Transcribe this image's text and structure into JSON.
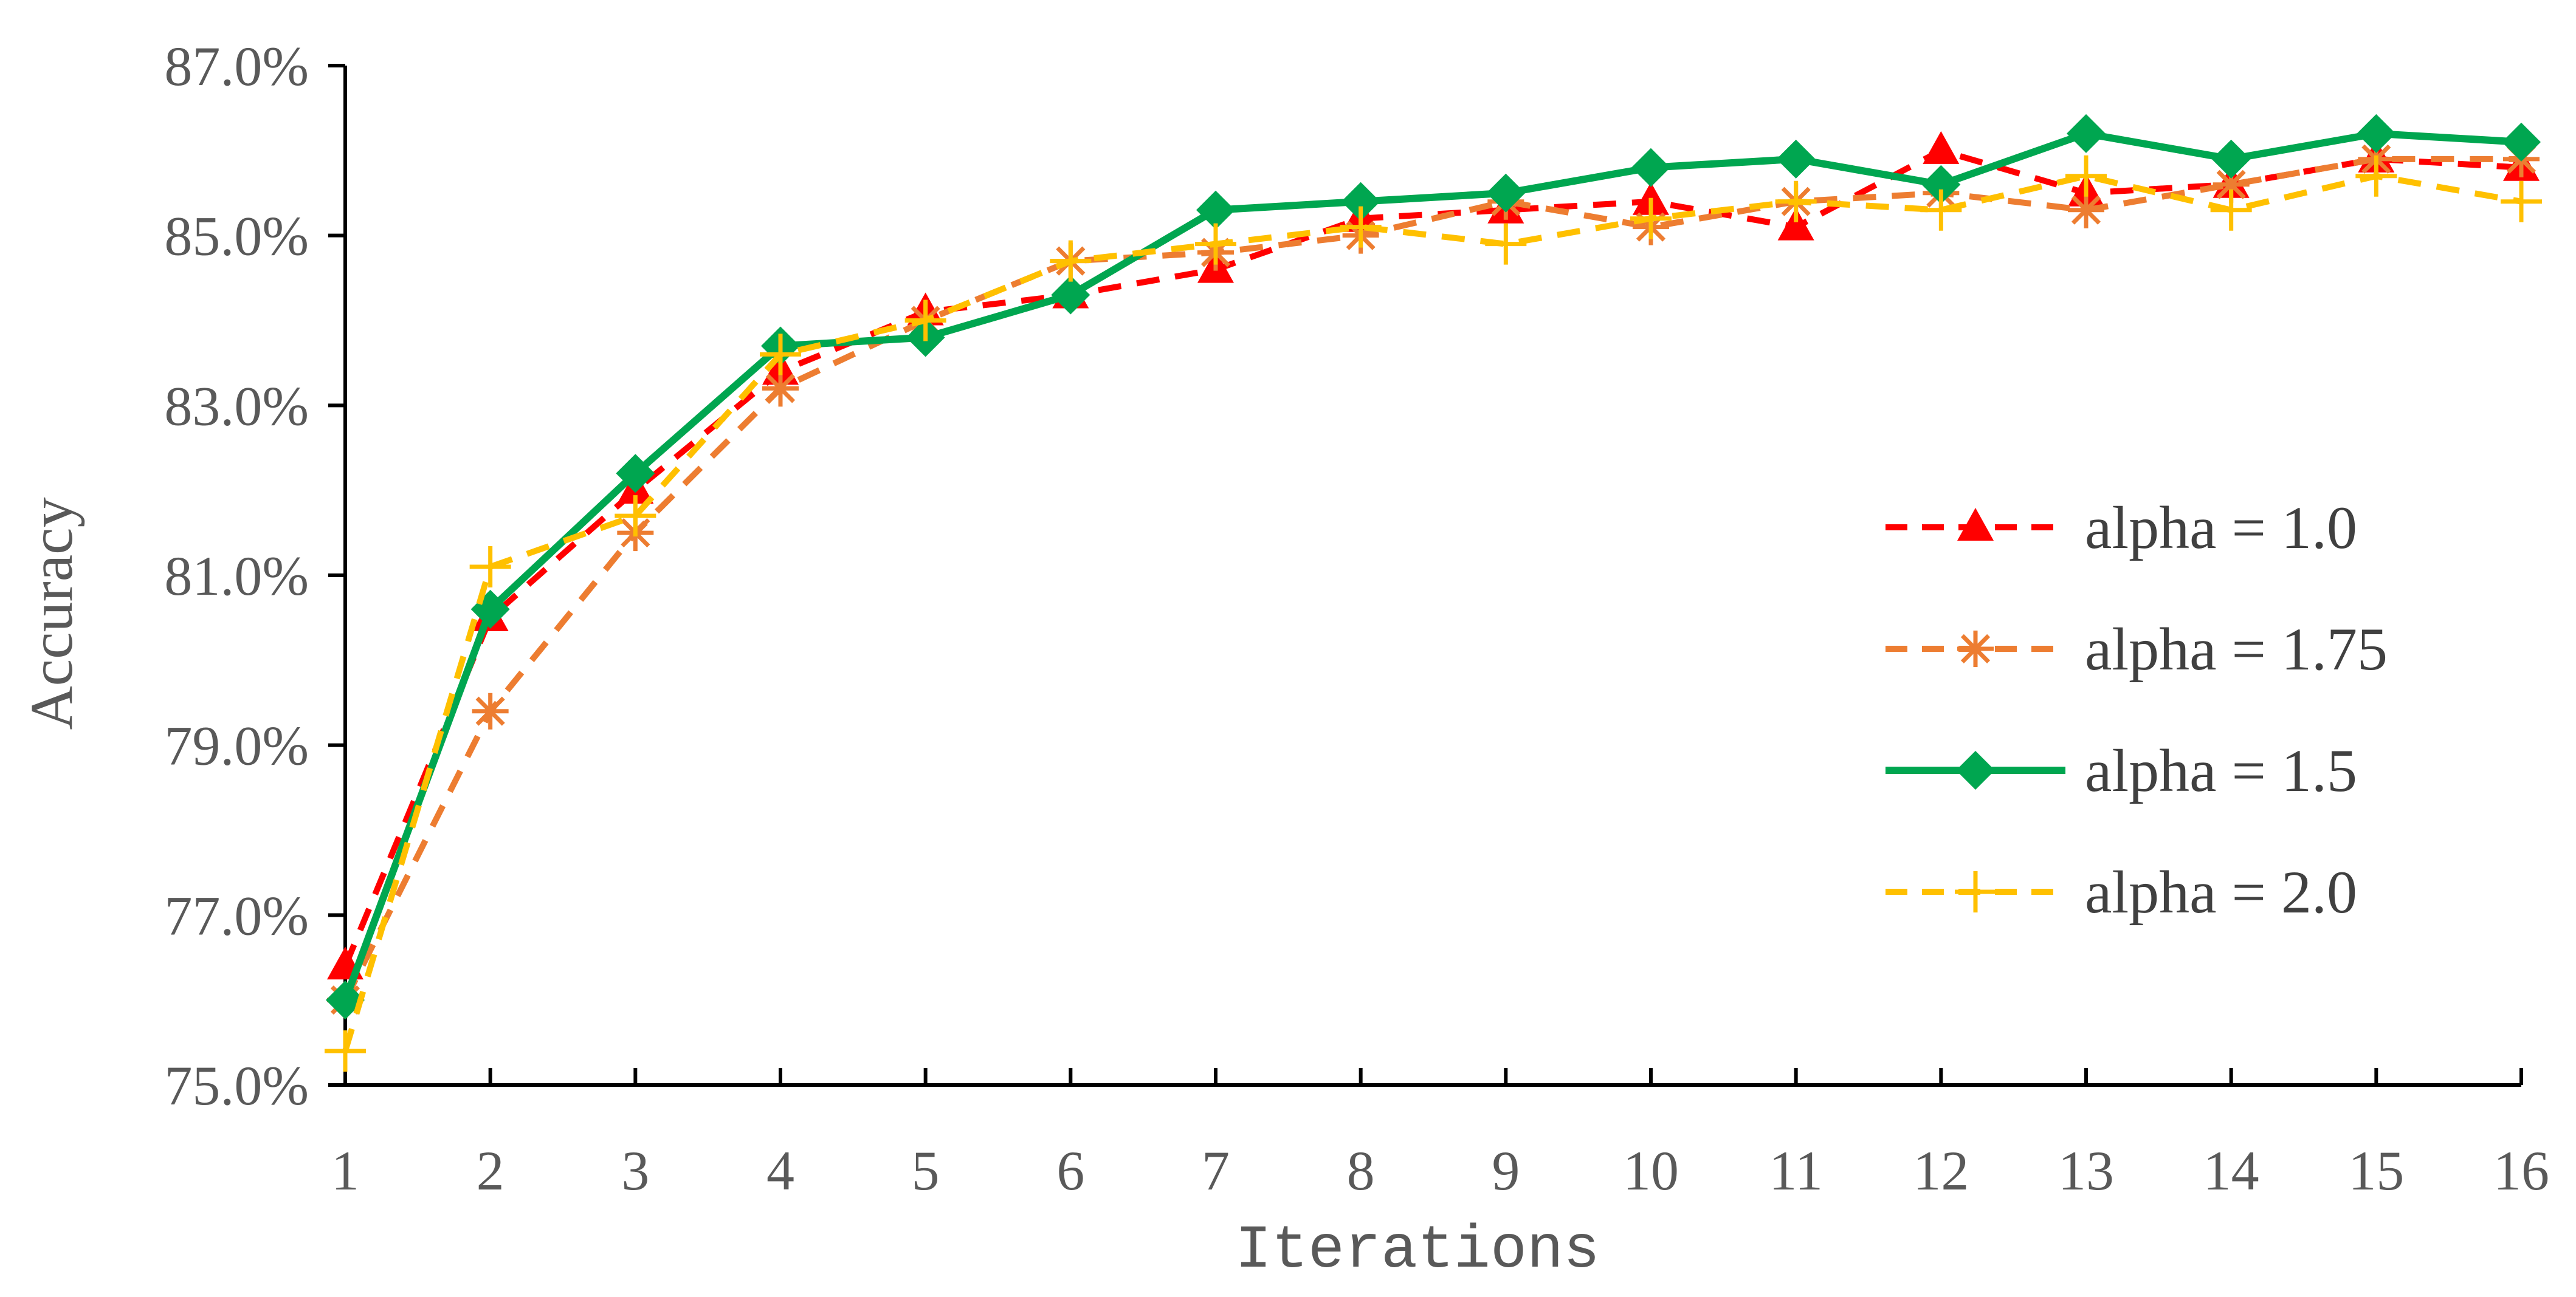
{
  "chart_data": {
    "type": "line",
    "title": "",
    "xlabel": "Iterations",
    "ylabel": "Accuracy",
    "x": [
      1,
      2,
      3,
      4,
      5,
      6,
      7,
      8,
      9,
      10,
      11,
      12,
      13,
      14,
      15,
      16
    ],
    "x_tick_labels": [
      "1",
      "2",
      "3",
      "4",
      "5",
      "6",
      "7",
      "8",
      "9",
      "10",
      "11",
      "12",
      "13",
      "14",
      "15",
      "16"
    ],
    "ylim": [
      75.0,
      87.0
    ],
    "y_ticks": [
      75.0,
      77.0,
      79.0,
      81.0,
      83.0,
      85.0,
      87.0
    ],
    "y_tick_labels": [
      "75.0%",
      "77.0%",
      "79.0%",
      "81.0%",
      "83.0%",
      "85.0%",
      "87.0%"
    ],
    "grid": false,
    "legend_position": "right",
    "series": [
      {
        "name": "alpha = 1.0",
        "color": "#FF0000",
        "dash": "dashed",
        "marker": "triangle",
        "values": [
          76.4,
          80.5,
          82.0,
          83.4,
          84.1,
          84.3,
          84.6,
          85.2,
          85.3,
          85.4,
          85.1,
          86.0,
          85.5,
          85.6,
          85.9,
          85.8
        ]
      },
      {
        "name": "alpha = 1.75",
        "color": "#ED7D31",
        "dash": "dashed",
        "marker": "asterisk",
        "values": [
          76.0,
          79.4,
          81.5,
          83.2,
          84.0,
          84.7,
          84.8,
          85.0,
          85.4,
          85.1,
          85.4,
          85.5,
          85.3,
          85.6,
          85.9,
          85.9
        ]
      },
      {
        "name": "alpha = 1.5",
        "color": "#00A650",
        "dash": "solid",
        "marker": "diamond",
        "values": [
          76.0,
          80.6,
          82.2,
          83.7,
          83.8,
          84.3,
          85.3,
          85.4,
          85.5,
          85.8,
          85.9,
          85.6,
          86.2,
          85.9,
          86.2,
          86.1
        ]
      },
      {
        "name": "alpha = 2.0",
        "color": "#FFC000",
        "dash": "dashed",
        "marker": "plus",
        "values": [
          75.4,
          81.1,
          81.7,
          83.6,
          84.0,
          84.7,
          84.9,
          85.1,
          84.9,
          85.2,
          85.4,
          85.3,
          85.7,
          85.3,
          85.7,
          85.4
        ]
      }
    ]
  }
}
